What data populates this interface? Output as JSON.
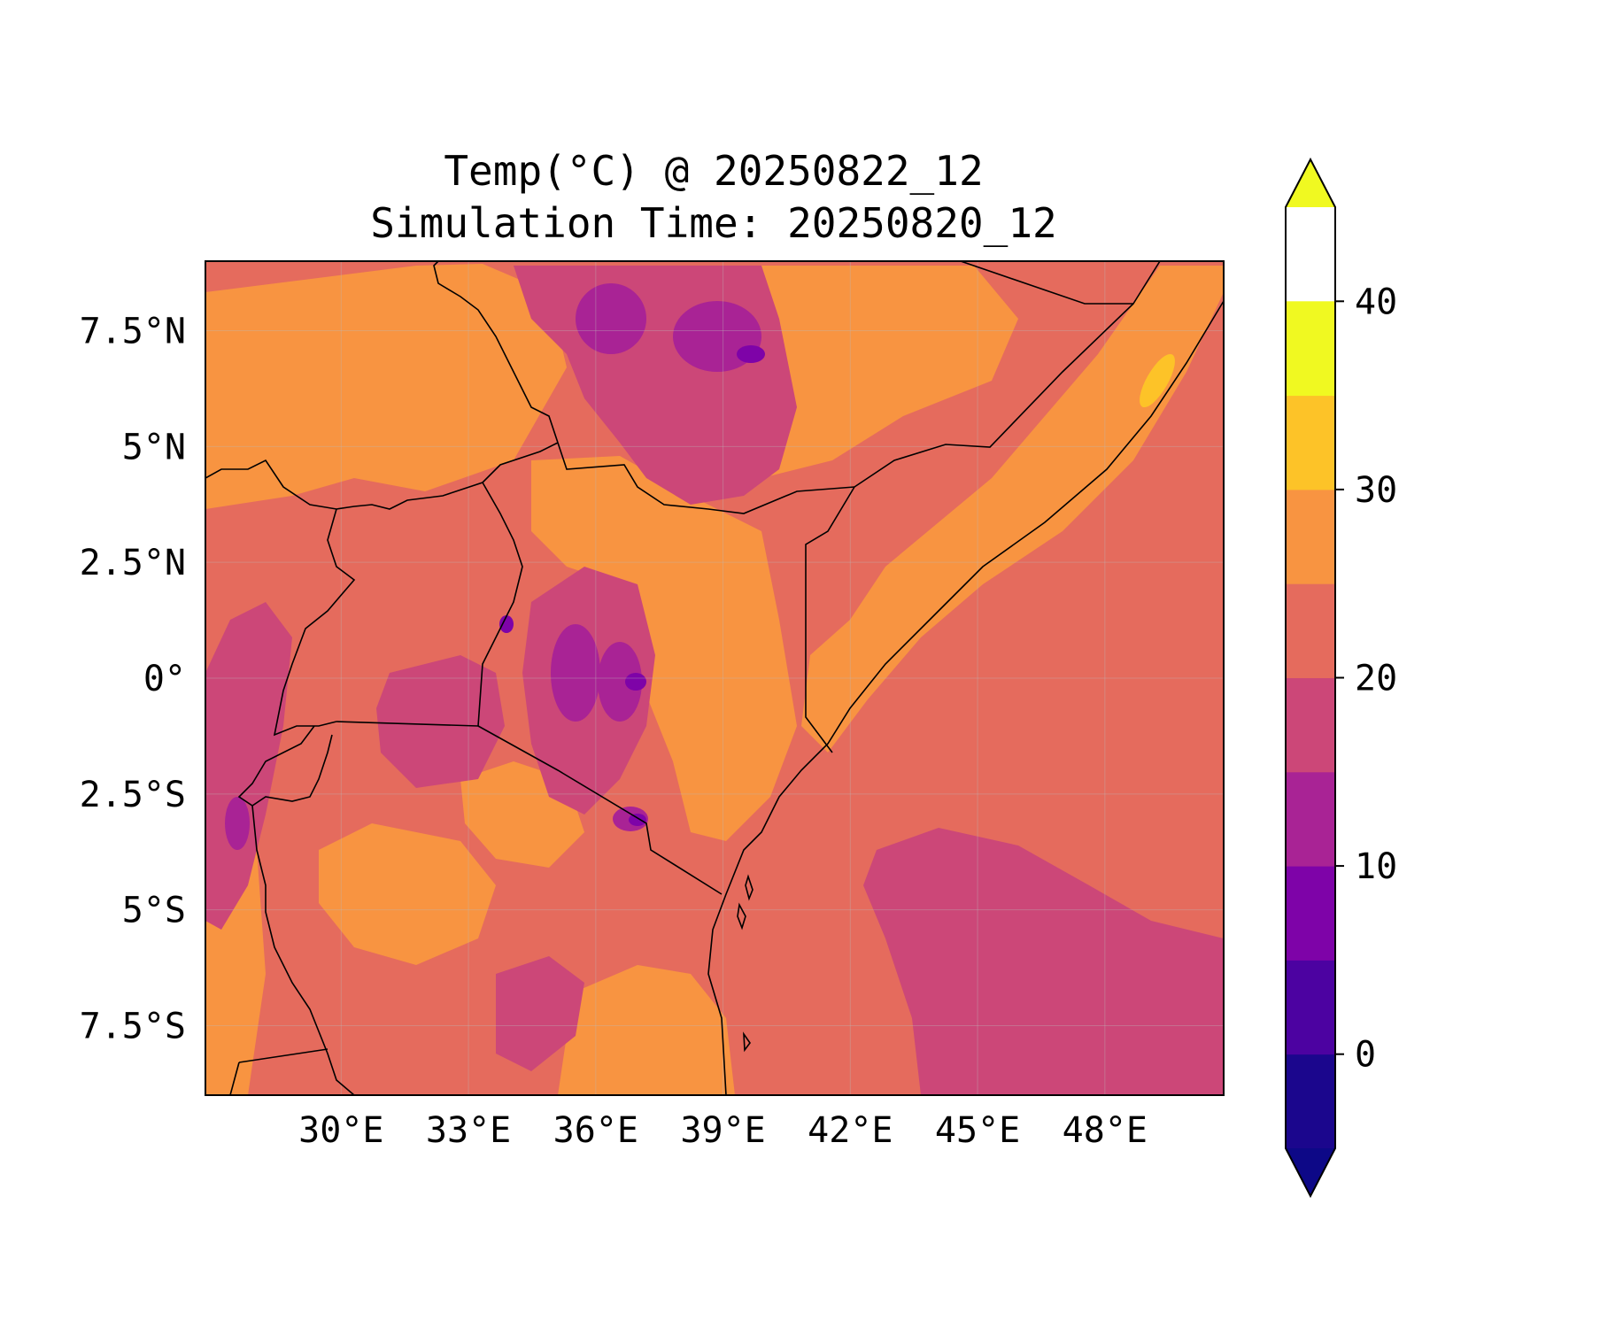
{
  "title": {
    "line1": "Temp(°C) @ 20250822_12",
    "line2": "Simulation Time: 20250820_12"
  },
  "map": {
    "variable": "Temperature",
    "unit": "°C",
    "lon_range": [
      26.8,
      50.8
    ],
    "lat_range": [
      -9.0,
      9.0
    ],
    "x_ticks": [
      {
        "value": 30,
        "label": "30°E"
      },
      {
        "value": 33,
        "label": "33°E"
      },
      {
        "value": 36,
        "label": "36°E"
      },
      {
        "value": 39,
        "label": "39°E"
      },
      {
        "value": 42,
        "label": "42°E"
      },
      {
        "value": 45,
        "label": "45°E"
      },
      {
        "value": 48,
        "label": "48°E"
      }
    ],
    "y_ticks": [
      {
        "value": 7.5,
        "label": "7.5°N"
      },
      {
        "value": 5,
        "label": "5°N"
      },
      {
        "value": 2.5,
        "label": "2.5°N"
      },
      {
        "value": 0,
        "label": "0°"
      },
      {
        "value": -2.5,
        "label": "2.5°S"
      },
      {
        "value": -5,
        "label": "5°S"
      },
      {
        "value": -7.5,
        "label": "7.5°S"
      }
    ],
    "gridlines": true
  },
  "colorbar": {
    "levels": [
      -5,
      0,
      5,
      10,
      15,
      20,
      25,
      30,
      35,
      40,
      45
    ],
    "colors": [
      "#1b068d",
      "#4c02a1",
      "#7e03a8",
      "#a92395",
      "#cc4778",
      "#e56b5d",
      "#f89441",
      "#fdc328",
      "#f0f921"
    ],
    "extend": "both",
    "ticks": [
      {
        "value": 0,
        "label": "0"
      },
      {
        "value": 10,
        "label": "10"
      },
      {
        "value": 20,
        "label": "20"
      },
      {
        "value": 30,
        "label": "30"
      },
      {
        "value": 40,
        "label": "40"
      }
    ]
  }
}
